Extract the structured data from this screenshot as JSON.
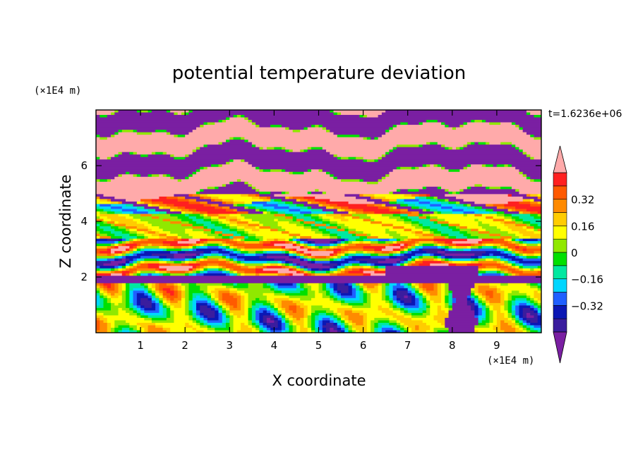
{
  "chart_data": {
    "type": "heatmap",
    "title": "potential temperature deviation",
    "xlabel": "X coordinate",
    "ylabel": "Z coordinate",
    "x_unit": "(×1E4 m)",
    "y_unit": "(×1E4 m)",
    "time_label": "t=1.6236e+06",
    "xlim": [
      0,
      10
    ],
    "ylim": [
      0,
      8
    ],
    "x_ticks": [
      1,
      2,
      3,
      4,
      5,
      6,
      7,
      8,
      9
    ],
    "y_ticks": [
      2,
      4,
      6
    ],
    "colorbar": {
      "levels": [
        -0.48,
        -0.4,
        -0.32,
        -0.24,
        -0.16,
        -0.08,
        0,
        0.08,
        0.16,
        0.24,
        0.32,
        0.4,
        0.48
      ],
      "labels": [
        "0.32",
        "0.16",
        "0",
        "−0.16",
        "−0.32"
      ],
      "label_values": [
        0.32,
        0.16,
        0,
        -0.16,
        -0.32
      ],
      "colors_low_to_high": [
        "#7a1fa2",
        "#3a1d9e",
        "#0b17b4",
        "#2060ff",
        "#00d6ff",
        "#00e8a0",
        "#00e000",
        "#90e800",
        "#ffff00",
        "#ffcc00",
        "#ff8a00",
        "#ff5a00",
        "#ff2020",
        "#ffaaaa"
      ],
      "extend": "both"
    },
    "field_description_bands": [
      {
        "z_range": [
          7.4,
          7.9
        ],
        "dominant": "-0.48 and below"
      },
      {
        "z_range": [
          6.7,
          7.4
        ],
        "dominant": "0.48 and above"
      },
      {
        "z_range": [
          5.9,
          6.7
        ],
        "dominant": "-0.48 and below"
      },
      {
        "z_range": [
          5.0,
          5.9
        ],
        "dominant": "0.48 and above"
      },
      {
        "z_range": [
          4.3,
          5.0
        ],
        "dominant": "-0.48 to 0.40 (mixed)"
      },
      {
        "z_range": [
          3.4,
          4.3
        ],
        "dominant": "-0.16 to 0.16"
      },
      {
        "z_range": [
          2.0,
          3.4
        ],
        "dominant": "-0.48 to 0.48 (mixed layers)"
      },
      {
        "z_range": [
          0.0,
          2.0
        ],
        "dominant": "-0.40 to 0.40 (eddies)"
      }
    ]
  }
}
